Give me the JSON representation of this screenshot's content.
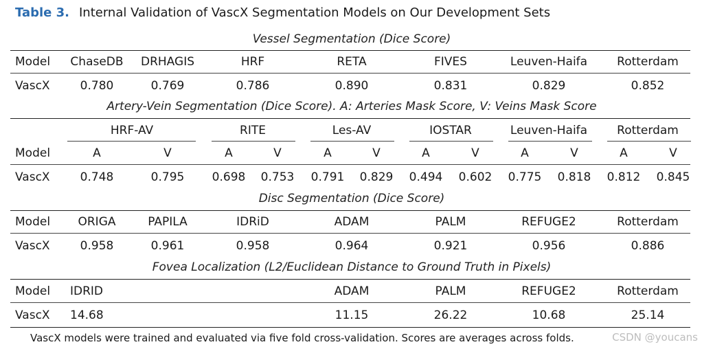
{
  "caption": {
    "label": "Table 3.",
    "text": "Internal Validation of VascX Segmentation Models on Our Development Sets"
  },
  "vessel": {
    "title": "Vessel Segmentation (Dice Score)",
    "header": [
      "Model",
      "ChaseDB",
      "DRHAGIS",
      "HRF",
      "RETA",
      "FIVES",
      "Leuven-Haifa",
      "Rotterdam"
    ],
    "row": [
      "VascX",
      "0.780",
      "0.769",
      "0.786",
      "0.890",
      "0.831",
      "0.829",
      "0.852"
    ]
  },
  "av": {
    "title": "Artery-Vein Segmentation (Dice Score). A: Arteries Mask Score, V: Veins Mask Score",
    "datasets": [
      "HRF-AV",
      "RITE",
      "Les-AV",
      "IOSTAR",
      "Leuven-Haifa",
      "Rotterdam"
    ],
    "sub": [
      "Model",
      "A",
      "V",
      "A",
      "V",
      "A",
      "V",
      "A",
      "V",
      "A",
      "V",
      "A",
      "V"
    ],
    "row": [
      "VascX",
      "0.748",
      "0.795",
      "0.698",
      "0.753",
      "0.791",
      "0.829",
      "0.494",
      "0.602",
      "0.775",
      "0.818",
      "0.812",
      "0.845"
    ]
  },
  "disc": {
    "title": "Disc Segmentation (Dice Score)",
    "header": [
      "Model",
      "ORIGA",
      "PAPILA",
      "IDRiD",
      "ADAM",
      "PALM",
      "REFUGE2",
      "Rotterdam"
    ],
    "row": [
      "VascX",
      "0.958",
      "0.961",
      "0.958",
      "0.964",
      "0.921",
      "0.956",
      "0.886"
    ]
  },
  "fovea": {
    "title": "Fovea Localization (L2/Euclidean Distance to Ground Truth in Pixels)",
    "header": [
      "Model",
      "IDRID",
      "ADAM",
      "PALM",
      "REFUGE2",
      "Rotterdam"
    ],
    "row": [
      "VascX",
      "14.68",
      "11.15",
      "26.22",
      "10.68",
      "25.14"
    ]
  },
  "footnote": "VascX models were trained and evaluated via five fold cross-validation. Scores are averages across folds.",
  "watermark": "CSDN @youcans"
}
